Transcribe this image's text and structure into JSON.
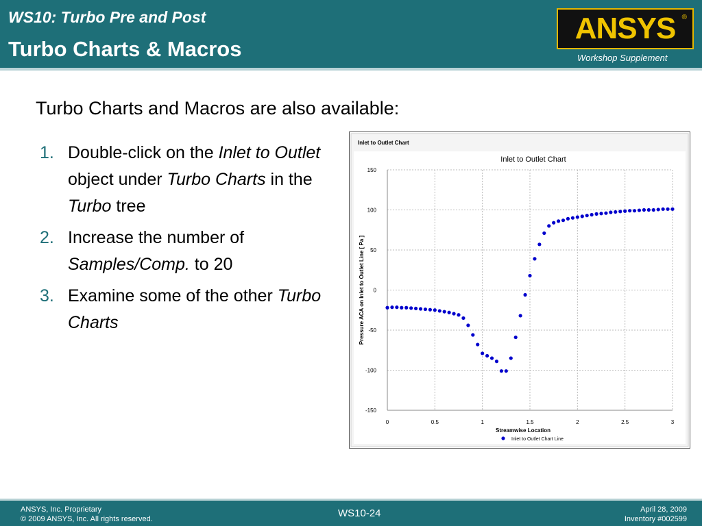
{
  "header": {
    "subtitle": "WS10: Turbo Pre and Post",
    "title": "Turbo Charts & Macros",
    "logo_text": "ANSYS",
    "logo_reg": "®",
    "workshop": "Workshop Supplement"
  },
  "body": {
    "intro": "Turbo Charts and Macros are also available:",
    "steps": [
      {
        "num": "1.",
        "parts": [
          "Double-click on the ",
          "Inlet to Outlet",
          " object under ",
          "Turbo Charts",
          " in the ",
          "Turbo",
          " tree"
        ]
      },
      {
        "num": "2.",
        "parts": [
          "Increase the number of ",
          "Samples/Comp.",
          " to 20"
        ]
      },
      {
        "num": "3.",
        "parts": [
          "Examine some of the other ",
          "Turbo Charts"
        ]
      }
    ]
  },
  "chart_data": {
    "type": "scatter",
    "panel_label": "Inlet to Outlet Chart",
    "title": "Inlet to Outlet Chart",
    "xlabel": "Streamwise Location",
    "ylabel": "Pressure ACA on Inlet to Outlet Line [ Pa ]",
    "xlim": [
      0,
      3
    ],
    "ylim": [
      -150,
      150
    ],
    "x_ticks": [
      "0",
      "0.5",
      "1",
      "1.5",
      "2",
      "2.5",
      "3"
    ],
    "y_ticks": [
      "150",
      "100",
      "50",
      "0",
      "-50",
      "-100",
      "-150"
    ],
    "grid": true,
    "legend_position": "bottom",
    "color": "#0000cc",
    "series": [
      {
        "name": "Inlet to Outlet Chart Line",
        "x": [
          0,
          0.05,
          0.1,
          0.15,
          0.2,
          0.25,
          0.3,
          0.35,
          0.4,
          0.45,
          0.5,
          0.55,
          0.6,
          0.65,
          0.7,
          0.75,
          0.8,
          0.85,
          0.9,
          0.95,
          1.0,
          1.05,
          1.1,
          1.15,
          1.2,
          1.25,
          1.3,
          1.35,
          1.4,
          1.45,
          1.5,
          1.55,
          1.6,
          1.65,
          1.7,
          1.75,
          1.8,
          1.85,
          1.9,
          1.95,
          2.0,
          2.05,
          2.1,
          2.15,
          2.2,
          2.25,
          2.3,
          2.35,
          2.4,
          2.45,
          2.5,
          2.55,
          2.6,
          2.65,
          2.7,
          2.75,
          2.8,
          2.85,
          2.9,
          2.95,
          3.0
        ],
        "values": [
          -22,
          -21.5,
          -21.5,
          -22,
          -22,
          -22.5,
          -23,
          -23.5,
          -24,
          -24.5,
          -25,
          -26,
          -27,
          -28,
          -29.5,
          -31,
          -35,
          -44,
          -56,
          -68,
          -79,
          -82,
          -85,
          -89,
          -101,
          -101,
          -85,
          -59,
          -32,
          -6,
          18,
          39,
          57,
          71,
          80,
          84,
          86,
          87,
          89,
          90,
          91,
          92,
          93,
          94,
          95,
          95.5,
          96,
          97,
          97.5,
          98,
          98.5,
          99,
          99,
          99.5,
          100,
          100,
          100,
          100.5,
          101,
          101,
          101
        ]
      }
    ]
  },
  "footer": {
    "left_line1": "ANSYS, Inc. Proprietary",
    "left_line2": "© 2009 ANSYS, Inc.  All rights reserved.",
    "center": "WS10-24",
    "right_line1": "April 28, 2009",
    "right_line2": "Inventory #002599"
  }
}
